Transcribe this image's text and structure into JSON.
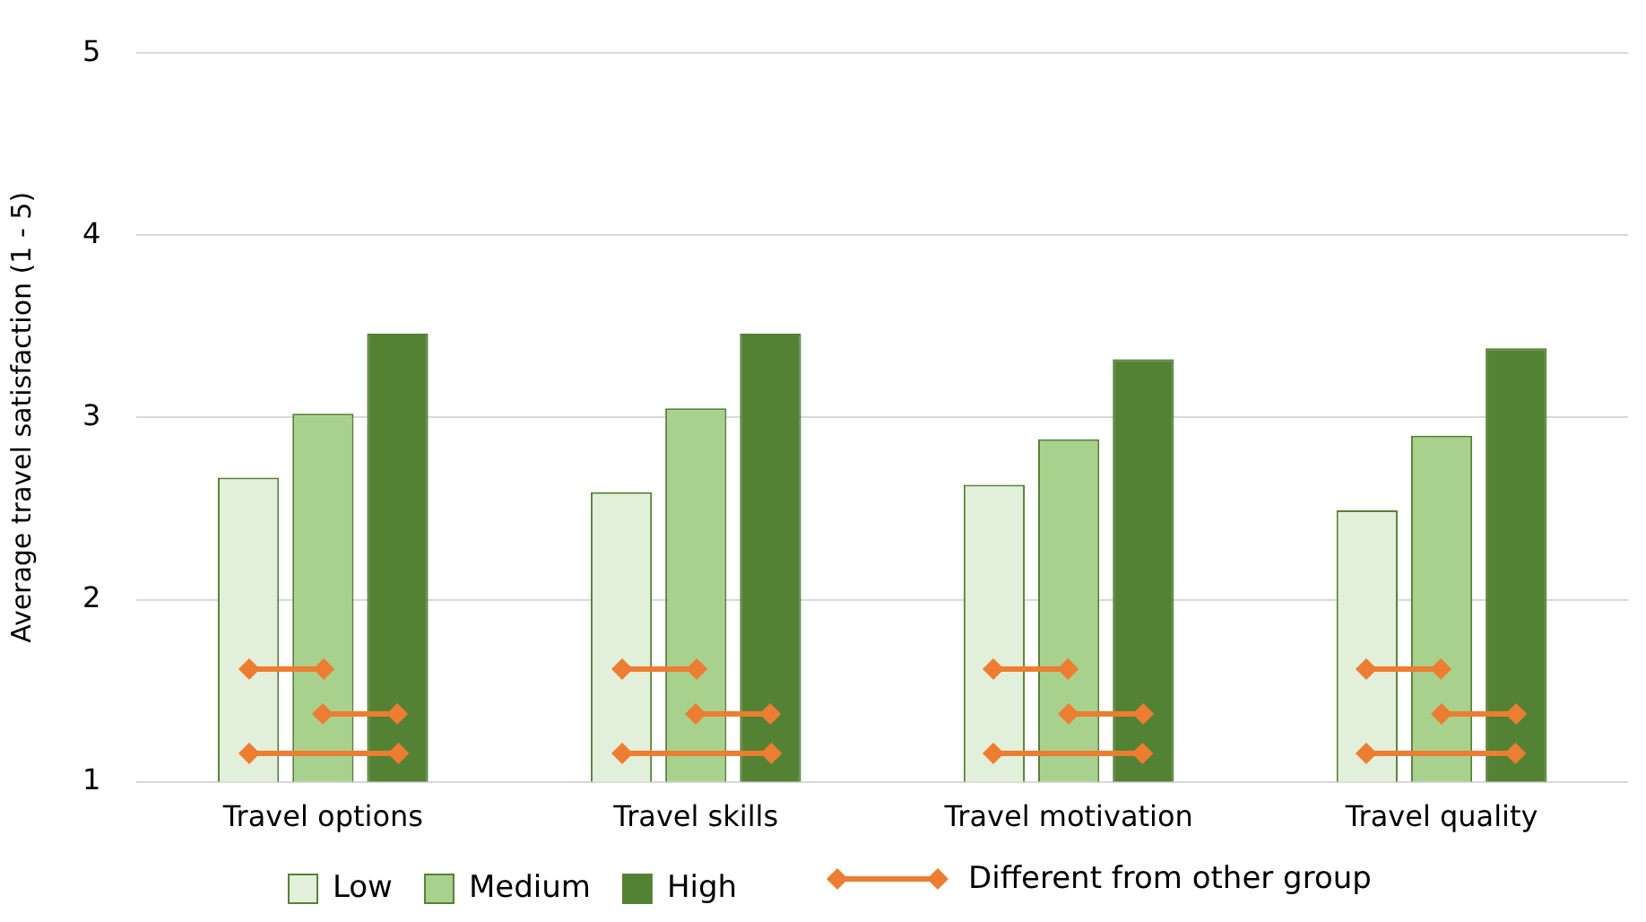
{
  "chart_data": {
    "type": "bar",
    "ylabel": "Average travel satisfaction (1 - 5)",
    "categories": [
      "Travel options",
      "Travel skills",
      "Travel motivation",
      "Travel quality"
    ],
    "series": [
      {
        "name": "Low",
        "color": "#e2efda",
        "values": [
          2.67,
          2.59,
          2.63,
          2.49
        ]
      },
      {
        "name": "Medium",
        "color": "#a9d18e",
        "values": [
          3.02,
          3.05,
          2.88,
          2.9
        ]
      },
      {
        "name": "High",
        "color": "#548235",
        "values": [
          3.46,
          3.46,
          3.32,
          3.38
        ]
      }
    ],
    "annotations": [
      "Different from other group"
    ],
    "ylim": [
      1,
      5
    ],
    "yticks": [
      1,
      2,
      3,
      4,
      5
    ],
    "grid": "y",
    "legend": "bottom"
  }
}
